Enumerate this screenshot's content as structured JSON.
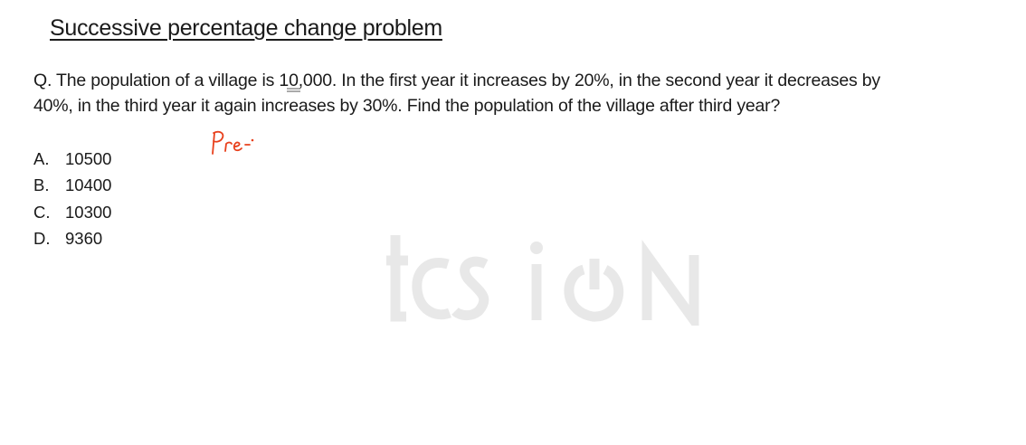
{
  "title": "Successive percentage change problem",
  "question": {
    "line1": "Q. The population of a village is 10,000. In the first year it increases by 20%, in the second year it decreases by",
    "line2": "40%, in the third year it again increases by 30%. Find the population of the village after third year?"
  },
  "options": [
    {
      "letter": "A.",
      "value": "10500"
    },
    {
      "letter": "B.",
      "value": "10400"
    },
    {
      "letter": "C.",
      "value": "10300"
    },
    {
      "letter": "D.",
      "value": "9360"
    }
  ],
  "annotation": {
    "text": "Pre",
    "color": "#e8401c"
  },
  "watermark": {
    "text": "tcs iON",
    "color": "#e8e8e8"
  }
}
